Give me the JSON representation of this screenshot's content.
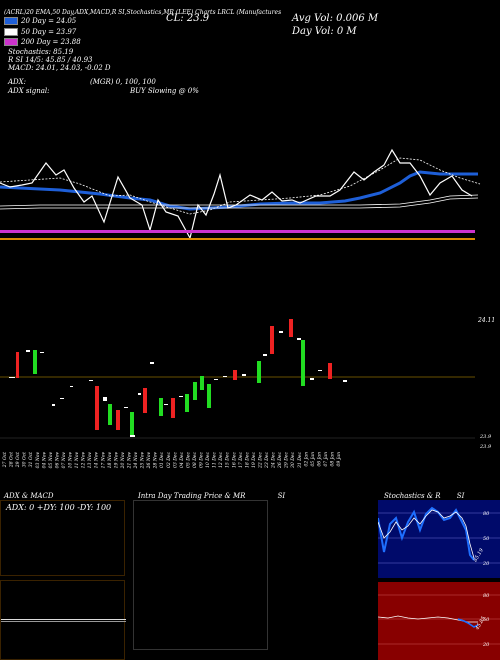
{
  "header": {
    "top_line": "(ACRL)20 EMA,50 Day,ADX,MACD,R    SI,Stochastics,MR    (LEE) Charts LRCL    (Manufactures",
    "cl": "CL: 23.9",
    "avg_vol": "Avg Vol: 0.006   M",
    "day_vol": "Day Vol: 0   M"
  },
  "legend": [
    {
      "label": "20  Day = 24.05",
      "color": "#1e5fd8"
    },
    {
      "label": "50  Day = 23.97",
      "color": "#ffffff"
    },
    {
      "label": "200  Day = 23.88",
      "color": "#cc33cc"
    }
  ],
  "indicators": {
    "stochastics": "Stochastics: 85.19",
    "rsi": "R          SI 14/5: 45.85 / 40.93",
    "macd": "MACD: 24.01, 24.03, -0.02  D",
    "adx": "ADX:",
    "adx_mid": "(MGR) 0,  100,  100",
    "adx_signal": "ADX  signal:",
    "buy_signal": "BUY Slowing @ 0%"
  },
  "price_labels": {
    "top": "24.11",
    "low1": "23.9",
    "low2": "23.9"
  },
  "x_dates": [
    "27 Oct",
    "28 Oct",
    "29 Oct",
    "30 Oct",
    "31 Oct",
    "03 Nov",
    "04 Nov",
    "05 Nov",
    "06 Nov",
    "07 Nov",
    "10 Nov",
    "11 Nov",
    "12 Nov",
    "13 Nov",
    "14 Nov",
    "17 Nov",
    "18 Nov",
    "19 Nov",
    "20 Nov",
    "21 Nov",
    "24 Nov",
    "25 Nov",
    "26 Nov",
    "28 Nov",
    "01 Dec",
    "02 Dec",
    "03 Dec",
    "04 Dec",
    "05 Dec",
    "08 Dec",
    "09 Dec",
    "10 Dec",
    "11 Dec",
    "12 Dec",
    "15 Dec",
    "16 Dec",
    "17 Dec",
    "18 Dec",
    "19 Dec",
    "22 Dec",
    "23 Dec",
    "24 Dec",
    "26 Dec",
    "29 Dec",
    "30 Dec",
    "31 Dec",
    "02 Jan",
    "05 Jan",
    "06 Jan",
    "07 Jan",
    "08 Jan",
    "09 Jan"
  ],
  "panels": {
    "adx_title": "ADX  & MACD",
    "adx_values": "ADX: 0   +DY: 100   -DY: 100",
    "intraday_title": "Intra  Day Trading Price  & MR",
    "intraday_title_si": "SI",
    "stoch_title": "Stochastics & R",
    "stoch_title_si": "SI",
    "stoch_ticks": [
      "80",
      "50",
      "20"
    ],
    "stoch_label": "85.19",
    "rsi_ticks": [
      "80",
      "50",
      "20"
    ],
    "rsi_label": "45.85"
  },
  "colors": {
    "ema20": "#1e5fd8",
    "ema50": "#ffffff",
    "ema200": "#cc33cc",
    "orange": "#d98a00",
    "up": "#22dd22",
    "down": "#ee2222",
    "stoch_bg": "#000a6a",
    "rsi_bg": "#880000"
  },
  "chart_data": [
    {
      "type": "line",
      "title": "",
      "series": [
        {
          "name": "20  Day",
          "values": [
            24.05,
            24.05,
            24.05,
            24.05,
            24.05,
            24.05,
            24.05,
            24.05,
            24.04,
            24.03,
            24.03,
            24.03,
            24.03,
            24.03,
            24.03,
            24.03,
            24.02,
            24.02,
            24.01,
            24.01,
            24.01,
            24.01,
            24.01,
            24.01,
            24.01,
            24.01,
            24.01,
            24.02,
            24.03,
            24.03,
            24.03,
            24.04,
            24.04,
            24.04,
            24.04,
            24.04,
            24.04,
            24.04,
            24.04,
            24.04,
            24.04,
            24.04,
            24.05,
            24.06,
            24.07,
            24.09,
            24.11,
            24.11,
            24.1,
            24.1,
            24.1,
            24.1
          ]
        },
        {
          "name": "50  Day",
          "values": [
            23.97,
            23.97,
            23.97,
            23.97,
            23.97,
            23.97,
            23.97,
            23.97,
            23.97,
            23.97,
            23.97,
            23.97,
            23.97,
            23.97,
            23.97,
            23.97,
            23.97,
            23.97,
            23.97,
            23.97,
            23.97,
            23.97,
            23.97,
            23.97,
            23.97,
            23.97,
            23.97,
            23.97,
            23.97,
            23.97,
            23.97,
            23.97,
            23.97,
            23.97,
            23.97,
            23.97,
            23.97,
            23.97,
            23.97,
            23.97,
            23.97,
            23.97,
            23.97,
            23.98,
            23.98,
            23.99,
            24.0,
            24.0,
            24.01,
            24.01,
            24.01,
            24.01
          ]
        },
        {
          "name": "200  Day",
          "values": [
            23.88,
            23.88,
            23.88,
            23.88,
            23.88,
            23.88,
            23.88,
            23.88,
            23.88,
            23.88,
            23.88,
            23.88,
            23.88,
            23.88,
            23.88,
            23.88,
            23.88,
            23.88,
            23.88,
            23.88,
            23.88,
            23.88,
            23.88,
            23.88,
            23.88,
            23.88,
            23.88,
            23.88,
            23.88,
            23.88,
            23.88,
            23.88,
            23.88,
            23.88,
            23.88,
            23.88,
            23.88,
            23.88,
            23.88,
            23.88,
            23.88,
            23.88,
            23.88,
            23.88,
            23.88,
            23.88,
            23.88,
            23.88,
            23.88,
            23.88,
            23.88,
            23.88
          ]
        }
      ]
    }
  ]
}
